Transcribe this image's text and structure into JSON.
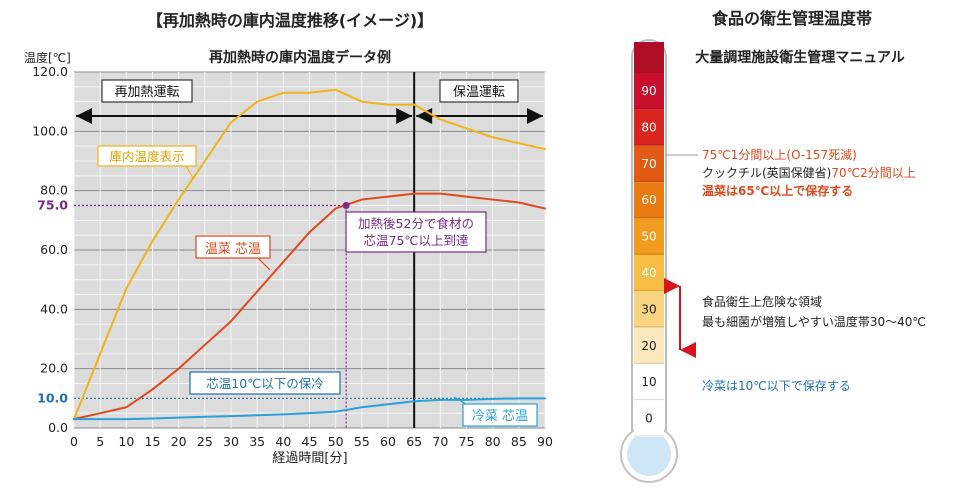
{
  "left_panel": {
    "heading": "【再加熱時の庫内温度推移(イメージ)】"
  },
  "chart_data": {
    "type": "line",
    "title": "再加熱時の庫内温度データ例",
    "ylabel": "温度[℃]",
    "xlabel": "経過時間[分]",
    "xlim": [
      0,
      90
    ],
    "ylim": [
      0,
      120
    ],
    "x_ticks": [
      0,
      5,
      10,
      15,
      20,
      25,
      30,
      35,
      40,
      45,
      50,
      55,
      60,
      65,
      70,
      75,
      80,
      85,
      90
    ],
    "x_tick_labels": [
      "0",
      "5",
      "10",
      "15",
      "20",
      "25",
      "30",
      "35",
      "40",
      "45",
      "50",
      "55",
      "60",
      "65",
      "70",
      "75",
      "80",
      "85",
      "90"
    ],
    "y_ticks": [
      0,
      20,
      40,
      60,
      80,
      100,
      120
    ],
    "y_tick_labels": [
      "0.0",
      "20.0",
      "40.0",
      "60.0",
      "80.0",
      "100.0",
      "120.0"
    ],
    "y_minor_grid_step": 5,
    "grid": true,
    "phases": [
      {
        "label": "再加熱運転",
        "from": 0,
        "to": 65
      },
      {
        "label": "保温運転",
        "from": 65,
        "to": 90
      }
    ],
    "divider_x": 65,
    "series": [
      {
        "name": "庫内温度表示",
        "color": "#f2b21b",
        "x": [
          0,
          5,
          10,
          15,
          20,
          25,
          30,
          35,
          40,
          45,
          50,
          55,
          60,
          65,
          70,
          75,
          80,
          85,
          90
        ],
        "y": [
          3,
          25,
          47,
          63,
          77,
          90,
          103,
          110,
          113,
          113,
          114,
          110,
          109,
          109,
          104,
          101,
          98,
          96,
          94
        ]
      },
      {
        "name": "温菜 芯温",
        "color": "#e0481c",
        "x": [
          0,
          5,
          10,
          15,
          20,
          25,
          30,
          35,
          40,
          45,
          50,
          55,
          60,
          65,
          70,
          75,
          80,
          85,
          90
        ],
        "y": [
          3,
          5,
          7,
          13,
          20,
          28,
          36,
          46,
          56,
          66,
          74,
          77,
          78,
          79,
          79,
          78,
          77,
          76,
          74
        ]
      },
      {
        "name": "冷菜 芯温",
        "color": "#2aa0d8",
        "x": [
          0,
          5,
          10,
          15,
          20,
          25,
          30,
          35,
          40,
          45,
          50,
          55,
          60,
          65,
          70,
          75,
          80,
          85,
          90
        ],
        "y": [
          3,
          3,
          3,
          3.2,
          3.5,
          3.8,
          4,
          4.3,
          4.6,
          5,
          5.5,
          7,
          8,
          9,
          9.5,
          9.5,
          9.8,
          10,
          10
        ]
      }
    ],
    "reference_lines": [
      {
        "value": 75,
        "label": "75.0",
        "color": "#7a2a8a"
      },
      {
        "value": 10,
        "label": "10.0",
        "color": "#1d6fb8"
      }
    ],
    "marker": {
      "x": 52,
      "y": 75,
      "color": "#7a2a8a"
    },
    "annotations": {
      "oven_label": "庫内温度表示",
      "hot_label": "温菜 芯温",
      "cold_label": "冷菜 芯温",
      "reach_line1": "加熱後52分で食材の",
      "reach_line2": "芯温75℃以上到達",
      "hold_label": "芯温10℃以下の保冷"
    }
  },
  "right_panel": {
    "heading": "食品の衛生管理温度帯",
    "subheading": "大量調理施設衛生管理マニュアル",
    "thermometer_unit": "℃",
    "scale": [
      {
        "label": "90",
        "color": "#c8102e"
      },
      {
        "label": "80",
        "color": "#d9241f"
      },
      {
        "label": "70",
        "color": "#e35a14"
      },
      {
        "label": "60",
        "color": "#ec7a12"
      },
      {
        "label": "50",
        "color": "#f29b1f"
      },
      {
        "label": "40",
        "color": "#f7bd45"
      },
      {
        "label": "30",
        "color": "#fbd482"
      },
      {
        "label": "20",
        "color": "#fde8bd"
      },
      {
        "label": "10",
        "color": "#ffffff"
      },
      {
        "label": "0",
        "color": "#ffffff"
      }
    ],
    "notes": {
      "note1_text": "75℃1分間以上(O-157死滅)",
      "note1_color": "#e0481c",
      "note2_prefix": "クックチル(英国保健省)",
      "note2_highlight": "70℃2分間以上",
      "note3_text": "温菜は65℃以上で保存する",
      "note3_color": "#e0481c",
      "danger_line1": "食品衛生上危険な領域",
      "danger_line2": "最も細菌が増殖しやすい温度帯30〜40℃",
      "cold_text": "冷菜は10℃以下で保存する",
      "cold_color": "#1d6fb8"
    }
  }
}
